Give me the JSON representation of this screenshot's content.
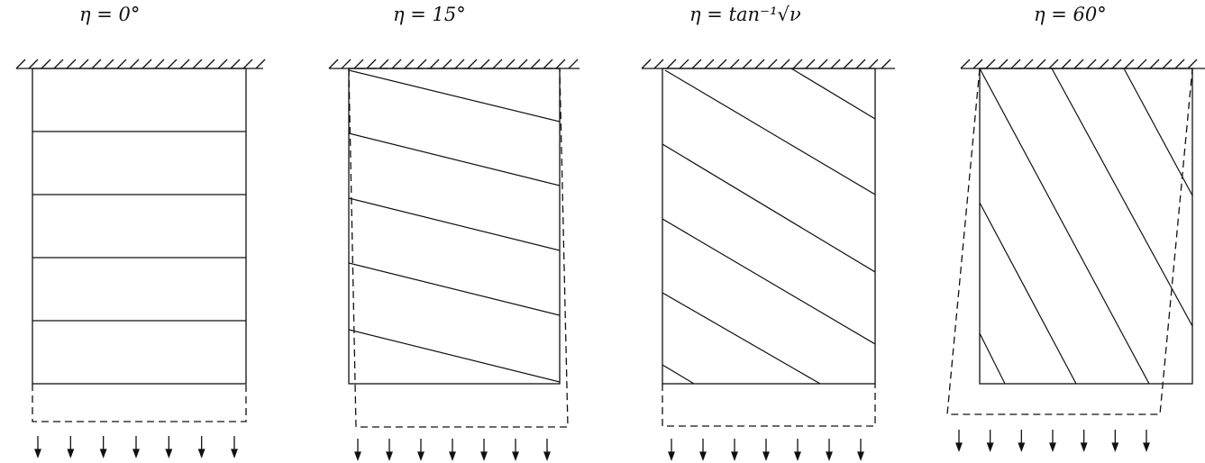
{
  "panels": [
    {
      "title": "η = 0°",
      "angle_deg": 0
    },
    {
      "title": "η = 15°",
      "angle_deg": 15
    },
    {
      "title": "η = tan⁻¹√ν",
      "angle_deg": 30
    },
    {
      "title": "η = 60°",
      "angle_deg": 60
    }
  ],
  "colors": {
    "ink": "#111111",
    "paper": "#ffffff"
  }
}
